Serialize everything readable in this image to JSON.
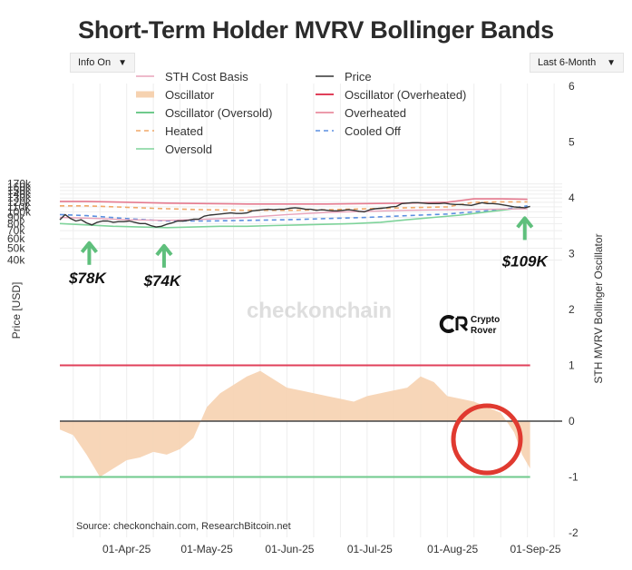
{
  "title": "Short-Term Holder MVRV Bollinger Bands",
  "controls": {
    "info_toggle": "Info On",
    "range_select": "Last 6-Month"
  },
  "watermark": "checkonchain",
  "logo_text": [
    "Crypto",
    "Rover"
  ],
  "source": "Source: checkonchain.com, ResearchBitcoin.net",
  "colors": {
    "cost_basis": "#e8a3ba",
    "oscillator_fill": "#f6d2b0",
    "oversold_osc": "#6fca8c",
    "overheated_osc": "#e0405a",
    "overheated": "#e57a8f",
    "price": "#333333",
    "heated": "#f0a868",
    "cooled_off": "#5b8fe0",
    "oversold": "#7ed39a",
    "arrow": "#5fbf7c",
    "circle": "#e03a30"
  },
  "chart_data": {
    "type": "line",
    "title": "Short-Term Holder MVRV Bollinger Bands",
    "ylabel": "Price [USD]",
    "y2label": "STH MVRV Bollinger Oscillator",
    "y_ticks": [
      "170k",
      "160k",
      "150k",
      "140k",
      "130k",
      "120k",
      "110k",
      "100k",
      "90k",
      "80k",
      "70k",
      "60k",
      "50k",
      "40k"
    ],
    "y2_ticks": [
      "6",
      "5",
      "4",
      "3",
      "2",
      "1",
      "0",
      "-1",
      "-2"
    ],
    "x_ticks": [
      "01-Apr-25",
      "01-May-25",
      "01-Jun-25",
      "01-Jul-25",
      "01-Aug-25",
      "01-Sep-25"
    ],
    "x_days": [
      0,
      30,
      61,
      91,
      122,
      153
    ],
    "x_range_days": [
      -25,
      163
    ],
    "legend": [
      "STH Cost Basis",
      "Price",
      "Oscillator",
      "Oscillator (Overheated)",
      "Oscillator (Oversold)",
      "Overheated",
      "Heated",
      "Cooled Off",
      "Oversold"
    ],
    "series": [
      {
        "name": "Price",
        "x": [
          -25,
          -23,
          -21,
          -19,
          -17,
          -15,
          -13,
          -11,
          -9,
          -7,
          -5,
          -3,
          -1,
          1,
          3,
          5,
          7,
          9,
          11,
          13,
          15,
          17,
          19,
          21,
          23,
          25,
          27,
          29,
          31,
          33,
          35,
          37,
          39,
          41,
          43,
          45,
          47,
          49,
          51,
          53,
          55,
          57,
          59,
          61,
          63,
          65,
          67,
          69,
          71,
          73,
          75,
          77,
          79,
          81,
          83,
          85,
          87,
          89,
          91,
          93,
          95,
          97,
          99,
          101,
          103,
          105,
          107,
          109,
          111,
          113,
          115,
          117,
          119,
          121,
          123,
          125,
          127,
          129,
          131,
          133,
          135,
          137,
          139,
          141,
          143,
          145,
          147,
          149,
          151
        ],
        "values": [
          86,
          95,
          88,
          84,
          86,
          81,
          78,
          82,
          84,
          84,
          82,
          83,
          83,
          84,
          82,
          80,
          80,
          77,
          75,
          76,
          79,
          81,
          84,
          84,
          85,
          87,
          87,
          92,
          94,
          95,
          96,
          97,
          98,
          97,
          97,
          98,
          102,
          103,
          104,
          105,
          104,
          105,
          105,
          107,
          108,
          107,
          105,
          105,
          103,
          104,
          103,
          102,
          102,
          103,
          104,
          103,
          101,
          100,
          104,
          106,
          107,
          108,
          110,
          111,
          117,
          118,
          119,
          119,
          118,
          117,
          117,
          117,
          118,
          116,
          115,
          115,
          114,
          113,
          116,
          119,
          117,
          117,
          116,
          114,
          112,
          110,
          109,
          108,
          111
        ]
      },
      {
        "name": "STH Cost Basis",
        "x": [
          -25,
          -10,
          0,
          15,
          30,
          45,
          60,
          75,
          90,
          105,
          120,
          135,
          150
        ],
        "values": [
          90,
          88,
          86,
          85,
          87,
          90,
          95,
          99,
          101,
          103,
          104,
          105,
          106
        ]
      },
      {
        "name": "Overheated",
        "x": [
          -25,
          -15,
          0,
          15,
          30,
          45,
          60,
          75,
          90,
          105,
          120,
          130,
          140,
          150
        ],
        "values": [
          122,
          122,
          120,
          118,
          117,
          116,
          116,
          116,
          117,
          118,
          120,
          128,
          128,
          127
        ]
      },
      {
        "name": "Heated",
        "x": [
          -25,
          -15,
          0,
          15,
          30,
          45,
          60,
          75,
          90,
          105,
          120,
          130,
          140,
          150
        ],
        "values": [
          112,
          112,
          109,
          106,
          104,
          103,
          103,
          104,
          106,
          108,
          110,
          120,
          121,
          121
        ]
      },
      {
        "name": "Cooled Off",
        "x": [
          -25,
          -15,
          0,
          15,
          30,
          45,
          60,
          75,
          90,
          105,
          120,
          130,
          140,
          150
        ],
        "values": [
          95,
          93,
          88,
          84,
          84,
          85,
          86,
          88,
          90,
          93,
          96,
          100,
          104,
          112
        ]
      },
      {
        "name": "Oversold",
        "x": [
          -25,
          -15,
          -5,
          5,
          15,
          25,
          35,
          45,
          55,
          65,
          75,
          85,
          95,
          105,
          115,
          125,
          135,
          145,
          150
        ],
        "values": [
          80,
          78,
          76,
          75,
          74,
          75,
          76,
          76,
          77,
          78,
          79,
          80,
          82,
          86,
          90,
          94,
          100,
          106,
          108
        ]
      },
      {
        "name": "Oscillator",
        "x": [
          -25,
          -20,
          -15,
          -10,
          -5,
          0,
          5,
          10,
          15,
          20,
          25,
          30,
          35,
          40,
          45,
          50,
          55,
          60,
          65,
          70,
          75,
          80,
          85,
          90,
          95,
          100,
          105,
          110,
          115,
          120,
          125,
          130,
          135,
          140,
          145,
          148,
          151
        ],
        "values": [
          -0.15,
          -0.25,
          -0.6,
          -1.0,
          -0.85,
          -0.7,
          -0.65,
          -0.55,
          -0.6,
          -0.5,
          -0.3,
          0.25,
          0.5,
          0.65,
          0.8,
          0.9,
          0.75,
          0.6,
          0.55,
          0.5,
          0.45,
          0.4,
          0.35,
          0.45,
          0.5,
          0.55,
          0.6,
          0.8,
          0.7,
          0.45,
          0.4,
          0.35,
          0.25,
          0.15,
          -0.2,
          -0.6,
          -0.85
        ]
      }
    ],
    "levels": {
      "oscillator_overheated": 1.0,
      "oscillator_oversold": -1.0,
      "zero": 0
    },
    "annotations": [
      {
        "text": "$78K",
        "x": -14,
        "price": 78
      },
      {
        "text": "$74K",
        "x": 14,
        "price": 74
      },
      {
        "text": "$109K",
        "x": 149,
        "price": 109
      }
    ]
  }
}
